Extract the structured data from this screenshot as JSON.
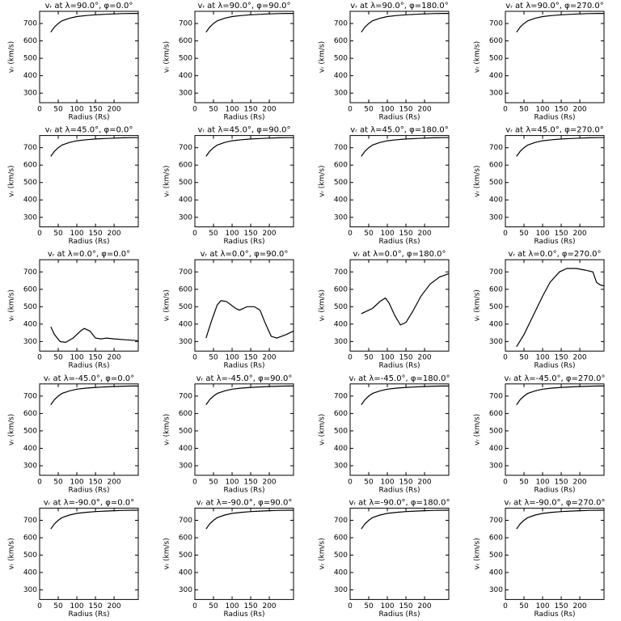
{
  "chart_data": [
    {
      "type": "line",
      "title": "vᵣ at λ=90.0°, φ=0.0°",
      "xlabel": "Radius (Rs)",
      "ylabel": "vᵣ (km/s)",
      "color": "#000000",
      "x": [
        30,
        40,
        50,
        60,
        80,
        100,
        125,
        150,
        175,
        200,
        225,
        250,
        265
      ],
      "values": [
        650,
        680,
        700,
        715,
        730,
        740,
        746,
        750,
        753,
        755,
        757,
        758,
        758
      ],
      "xlim": [
        0,
        265
      ],
      "ylim": [
        245,
        770
      ],
      "xticks": [
        0,
        50,
        100,
        150,
        200
      ],
      "yticks": [
        300,
        400,
        500,
        600,
        700
      ]
    },
    {
      "type": "line",
      "title": "vᵣ at λ=90.0°, φ=90.0°",
      "xlabel": "Radius (Rs)",
      "ylabel": "vᵣ (km/s)",
      "color": "#000000",
      "x": [
        30,
        40,
        50,
        60,
        80,
        100,
        125,
        150,
        175,
        200,
        225,
        250,
        265
      ],
      "values": [
        650,
        680,
        700,
        715,
        730,
        740,
        746,
        750,
        753,
        755,
        757,
        758,
        758
      ],
      "xlim": [
        0,
        265
      ],
      "ylim": [
        245,
        770
      ],
      "xticks": [
        0,
        50,
        100,
        150,
        200
      ],
      "yticks": [
        300,
        400,
        500,
        600,
        700
      ]
    },
    {
      "type": "line",
      "title": "vᵣ at λ=90.0°, φ=180.0°",
      "xlabel": "Radius (Rs)",
      "ylabel": "vᵣ (km/s)",
      "color": "#000000",
      "x": [
        30,
        40,
        50,
        60,
        80,
        100,
        125,
        150,
        175,
        200,
        225,
        250,
        265
      ],
      "values": [
        650,
        680,
        700,
        715,
        730,
        740,
        746,
        750,
        753,
        755,
        757,
        758,
        758
      ],
      "xlim": [
        0,
        265
      ],
      "ylim": [
        245,
        770
      ],
      "xticks": [
        0,
        50,
        100,
        150,
        200
      ],
      "yticks": [
        300,
        400,
        500,
        600,
        700
      ]
    },
    {
      "type": "line",
      "title": "vᵣ at λ=90.0°, φ=270.0°",
      "xlabel": "Radius (Rs)",
      "ylabel": "vᵣ (km/s)",
      "color": "#000000",
      "x": [
        30,
        40,
        50,
        60,
        80,
        100,
        125,
        150,
        175,
        200,
        225,
        250,
        265
      ],
      "values": [
        650,
        680,
        700,
        715,
        730,
        740,
        746,
        750,
        753,
        755,
        757,
        758,
        758
      ],
      "xlim": [
        0,
        265
      ],
      "ylim": [
        245,
        770
      ],
      "xticks": [
        0,
        50,
        100,
        150,
        200
      ],
      "yticks": [
        300,
        400,
        500,
        600,
        700
      ]
    },
    {
      "type": "line",
      "title": "vᵣ at λ=45.0°, φ=0.0°",
      "xlabel": "Radius (Rs)",
      "ylabel": "vᵣ (km/s)",
      "color": "#000000",
      "x": [
        30,
        40,
        50,
        60,
        80,
        100,
        125,
        150,
        175,
        200,
        225,
        250,
        265
      ],
      "values": [
        650,
        680,
        700,
        715,
        730,
        740,
        746,
        750,
        753,
        755,
        757,
        758,
        758
      ],
      "xlim": [
        0,
        265
      ],
      "ylim": [
        245,
        770
      ],
      "xticks": [
        0,
        50,
        100,
        150,
        200
      ],
      "yticks": [
        300,
        400,
        500,
        600,
        700
      ]
    },
    {
      "type": "line",
      "title": "vᵣ at λ=45.0°, φ=90.0°",
      "xlabel": "Radius (Rs)",
      "ylabel": "vᵣ (km/s)",
      "color": "#000000",
      "x": [
        30,
        40,
        50,
        60,
        80,
        100,
        125,
        150,
        175,
        200,
        225,
        250,
        265
      ],
      "values": [
        650,
        680,
        700,
        715,
        730,
        740,
        746,
        750,
        753,
        755,
        757,
        758,
        758
      ],
      "xlim": [
        0,
        265
      ],
      "ylim": [
        245,
        770
      ],
      "xticks": [
        0,
        50,
        100,
        150,
        200
      ],
      "yticks": [
        300,
        400,
        500,
        600,
        700
      ]
    },
    {
      "type": "line",
      "title": "vᵣ at λ=45.0°, φ=180.0°",
      "xlabel": "Radius (Rs)",
      "ylabel": "vᵣ (km/s)",
      "color": "#000000",
      "x": [
        30,
        40,
        50,
        60,
        80,
        100,
        125,
        150,
        175,
        200,
        225,
        250,
        265
      ],
      "values": [
        650,
        680,
        700,
        715,
        730,
        740,
        746,
        750,
        753,
        755,
        757,
        758,
        758
      ],
      "xlim": [
        0,
        265
      ],
      "ylim": [
        245,
        770
      ],
      "xticks": [
        0,
        50,
        100,
        150,
        200
      ],
      "yticks": [
        300,
        400,
        500,
        600,
        700
      ]
    },
    {
      "type": "line",
      "title": "vᵣ at λ=45.0°, φ=270.0°",
      "xlabel": "Radius (Rs)",
      "ylabel": "vᵣ (km/s)",
      "color": "#000000",
      "x": [
        30,
        40,
        50,
        60,
        80,
        100,
        125,
        150,
        175,
        200,
        225,
        250,
        265
      ],
      "values": [
        650,
        680,
        700,
        715,
        730,
        740,
        746,
        750,
        753,
        755,
        757,
        758,
        758
      ],
      "xlim": [
        0,
        265
      ],
      "ylim": [
        245,
        770
      ],
      "xticks": [
        0,
        50,
        100,
        150,
        200
      ],
      "yticks": [
        300,
        400,
        500,
        600,
        700
      ]
    },
    {
      "type": "line",
      "title": "vᵣ at λ=0.0°, φ=0.0°",
      "xlabel": "Radius (Rs)",
      "ylabel": "vᵣ (km/s)",
      "color": "#000000",
      "x": [
        30,
        40,
        55,
        70,
        90,
        110,
        120,
        135,
        150,
        165,
        180,
        200,
        230,
        265
      ],
      "values": [
        385,
        340,
        300,
        295,
        320,
        360,
        375,
        360,
        320,
        315,
        320,
        315,
        310,
        305
      ],
      "xlim": [
        0,
        265
      ],
      "ylim": [
        245,
        770
      ],
      "xticks": [
        0,
        50,
        100,
        150,
        200
      ],
      "yticks": [
        300,
        400,
        500,
        600,
        700
      ]
    },
    {
      "type": "line",
      "title": "vᵣ at λ=0.0°, φ=90.0°",
      "xlabel": "Radius (Rs)",
      "ylabel": "vᵣ (km/s)",
      "color": "#000000",
      "x": [
        30,
        45,
        60,
        70,
        85,
        110,
        120,
        140,
        160,
        175,
        190,
        205,
        220,
        245,
        265
      ],
      "values": [
        320,
        420,
        510,
        535,
        530,
        490,
        480,
        500,
        500,
        480,
        400,
        330,
        320,
        340,
        360
      ],
      "xlim": [
        0,
        265
      ],
      "ylim": [
        245,
        770
      ],
      "xticks": [
        0,
        50,
        100,
        150,
        200
      ],
      "yticks": [
        300,
        400,
        500,
        600,
        700
      ]
    },
    {
      "type": "line",
      "title": "vᵣ at λ=0.0°, φ=180.0°",
      "xlabel": "Radius (Rs)",
      "ylabel": "vᵣ (km/s)",
      "color": "#000000",
      "x": [
        30,
        45,
        60,
        80,
        95,
        105,
        120,
        135,
        150,
        170,
        190,
        215,
        240,
        265
      ],
      "values": [
        460,
        475,
        490,
        530,
        550,
        520,
        450,
        395,
        410,
        480,
        560,
        630,
        670,
        690
      ],
      "xlim": [
        0,
        265
      ],
      "ylim": [
        245,
        770
      ],
      "xticks": [
        0,
        50,
        100,
        150,
        200
      ],
      "yticks": [
        300,
        400,
        500,
        600,
        700
      ]
    },
    {
      "type": "line",
      "title": "vᵣ at λ=0.0°, φ=270.0°",
      "xlabel": "Radius (Rs)",
      "ylabel": "vᵣ (km/s)",
      "color": "#000000",
      "x": [
        30,
        50,
        75,
        100,
        120,
        145,
        165,
        190,
        215,
        235,
        245,
        255,
        265
      ],
      "values": [
        270,
        340,
        450,
        560,
        640,
        700,
        720,
        720,
        710,
        700,
        640,
        625,
        620
      ],
      "xlim": [
        0,
        265
      ],
      "ylim": [
        245,
        770
      ],
      "xticks": [
        0,
        50,
        100,
        150,
        200
      ],
      "yticks": [
        300,
        400,
        500,
        600,
        700
      ]
    },
    {
      "type": "line",
      "title": "vᵣ at λ=-45.0°, φ=0.0°",
      "xlabel": "Radius (Rs)",
      "ylabel": "vᵣ (km/s)",
      "color": "#000000",
      "x": [
        30,
        40,
        50,
        60,
        80,
        100,
        125,
        150,
        175,
        200,
        225,
        250,
        265
      ],
      "values": [
        650,
        680,
        700,
        715,
        730,
        740,
        746,
        750,
        753,
        755,
        757,
        758,
        758
      ],
      "xlim": [
        0,
        265
      ],
      "ylim": [
        245,
        770
      ],
      "xticks": [
        0,
        50,
        100,
        150,
        200
      ],
      "yticks": [
        300,
        400,
        500,
        600,
        700
      ]
    },
    {
      "type": "line",
      "title": "vᵣ at λ=-45.0°, φ=90.0°",
      "xlabel": "Radius (Rs)",
      "ylabel": "vᵣ (km/s)",
      "color": "#000000",
      "x": [
        30,
        40,
        50,
        60,
        80,
        100,
        125,
        150,
        175,
        200,
        225,
        250,
        265
      ],
      "values": [
        650,
        680,
        700,
        715,
        730,
        740,
        746,
        750,
        753,
        755,
        757,
        758,
        758
      ],
      "xlim": [
        0,
        265
      ],
      "ylim": [
        245,
        770
      ],
      "xticks": [
        0,
        50,
        100,
        150,
        200
      ],
      "yticks": [
        300,
        400,
        500,
        600,
        700
      ]
    },
    {
      "type": "line",
      "title": "vᵣ at λ=-45.0°, φ=180.0°",
      "xlabel": "Radius (Rs)",
      "ylabel": "vᵣ (km/s)",
      "color": "#000000",
      "x": [
        30,
        40,
        50,
        60,
        80,
        100,
        125,
        150,
        175,
        200,
        225,
        250,
        265
      ],
      "values": [
        650,
        680,
        700,
        715,
        730,
        740,
        746,
        750,
        753,
        755,
        757,
        758,
        758
      ],
      "xlim": [
        0,
        265
      ],
      "ylim": [
        245,
        770
      ],
      "xticks": [
        0,
        50,
        100,
        150,
        200
      ],
      "yticks": [
        300,
        400,
        500,
        600,
        700
      ]
    },
    {
      "type": "line",
      "title": "vᵣ at λ=-45.0°, φ=270.0°",
      "xlabel": "Radius (Rs)",
      "ylabel": "vᵣ (km/s)",
      "color": "#000000",
      "x": [
        30,
        40,
        50,
        60,
        80,
        100,
        125,
        150,
        175,
        200,
        225,
        250,
        265
      ],
      "values": [
        650,
        680,
        700,
        715,
        730,
        740,
        746,
        750,
        753,
        755,
        757,
        758,
        758
      ],
      "xlim": [
        0,
        265
      ],
      "ylim": [
        245,
        770
      ],
      "xticks": [
        0,
        50,
        100,
        150,
        200
      ],
      "yticks": [
        300,
        400,
        500,
        600,
        700
      ]
    },
    {
      "type": "line",
      "title": "vᵣ at λ=-90.0°, φ=0.0°",
      "xlabel": "Radius (Rs)",
      "ylabel": "vᵣ (km/s)",
      "color": "#000000",
      "x": [
        30,
        40,
        50,
        60,
        80,
        100,
        125,
        150,
        175,
        200,
        225,
        250,
        265
      ],
      "values": [
        650,
        680,
        700,
        715,
        730,
        740,
        746,
        750,
        753,
        755,
        757,
        758,
        758
      ],
      "xlim": [
        0,
        265
      ],
      "ylim": [
        245,
        770
      ],
      "xticks": [
        0,
        50,
        100,
        150,
        200
      ],
      "yticks": [
        300,
        400,
        500,
        600,
        700
      ]
    },
    {
      "type": "line",
      "title": "vᵣ at λ=-90.0°, φ=90.0°",
      "xlabel": "Radius (Rs)",
      "ylabel": "vᵣ (km/s)",
      "color": "#000000",
      "x": [
        30,
        40,
        50,
        60,
        80,
        100,
        125,
        150,
        175,
        200,
        225,
        250,
        265
      ],
      "values": [
        650,
        680,
        700,
        715,
        730,
        740,
        746,
        750,
        753,
        755,
        757,
        758,
        758
      ],
      "xlim": [
        0,
        265
      ],
      "ylim": [
        245,
        770
      ],
      "xticks": [
        0,
        50,
        100,
        150,
        200
      ],
      "yticks": [
        300,
        400,
        500,
        600,
        700
      ]
    },
    {
      "type": "line",
      "title": "vᵣ at λ=-90.0°, φ=180.0°",
      "xlabel": "Radius (Rs)",
      "ylabel": "vᵣ (km/s)",
      "color": "#000000",
      "x": [
        30,
        40,
        50,
        60,
        80,
        100,
        125,
        150,
        175,
        200,
        225,
        250,
        265
      ],
      "values": [
        650,
        680,
        700,
        715,
        730,
        740,
        746,
        750,
        753,
        755,
        757,
        758,
        758
      ],
      "xlim": [
        0,
        265
      ],
      "ylim": [
        245,
        770
      ],
      "xticks": [
        0,
        50,
        100,
        150,
        200
      ],
      "yticks": [
        300,
        400,
        500,
        600,
        700
      ]
    },
    {
      "type": "line",
      "title": "vᵣ at λ=-90.0°, φ=270.0°",
      "xlabel": "Radius (Rs)",
      "ylabel": "vᵣ (km/s)",
      "color": "#000000",
      "x": [
        30,
        40,
        50,
        60,
        80,
        100,
        125,
        150,
        175,
        200,
        225,
        250,
        265
      ],
      "values": [
        650,
        680,
        700,
        715,
        730,
        740,
        746,
        750,
        753,
        755,
        757,
        758,
        758
      ],
      "xlim": [
        0,
        265
      ],
      "ylim": [
        245,
        770
      ],
      "xticks": [
        0,
        50,
        100,
        150,
        200
      ],
      "yticks": [
        300,
        400,
        500,
        600,
        700
      ]
    }
  ]
}
